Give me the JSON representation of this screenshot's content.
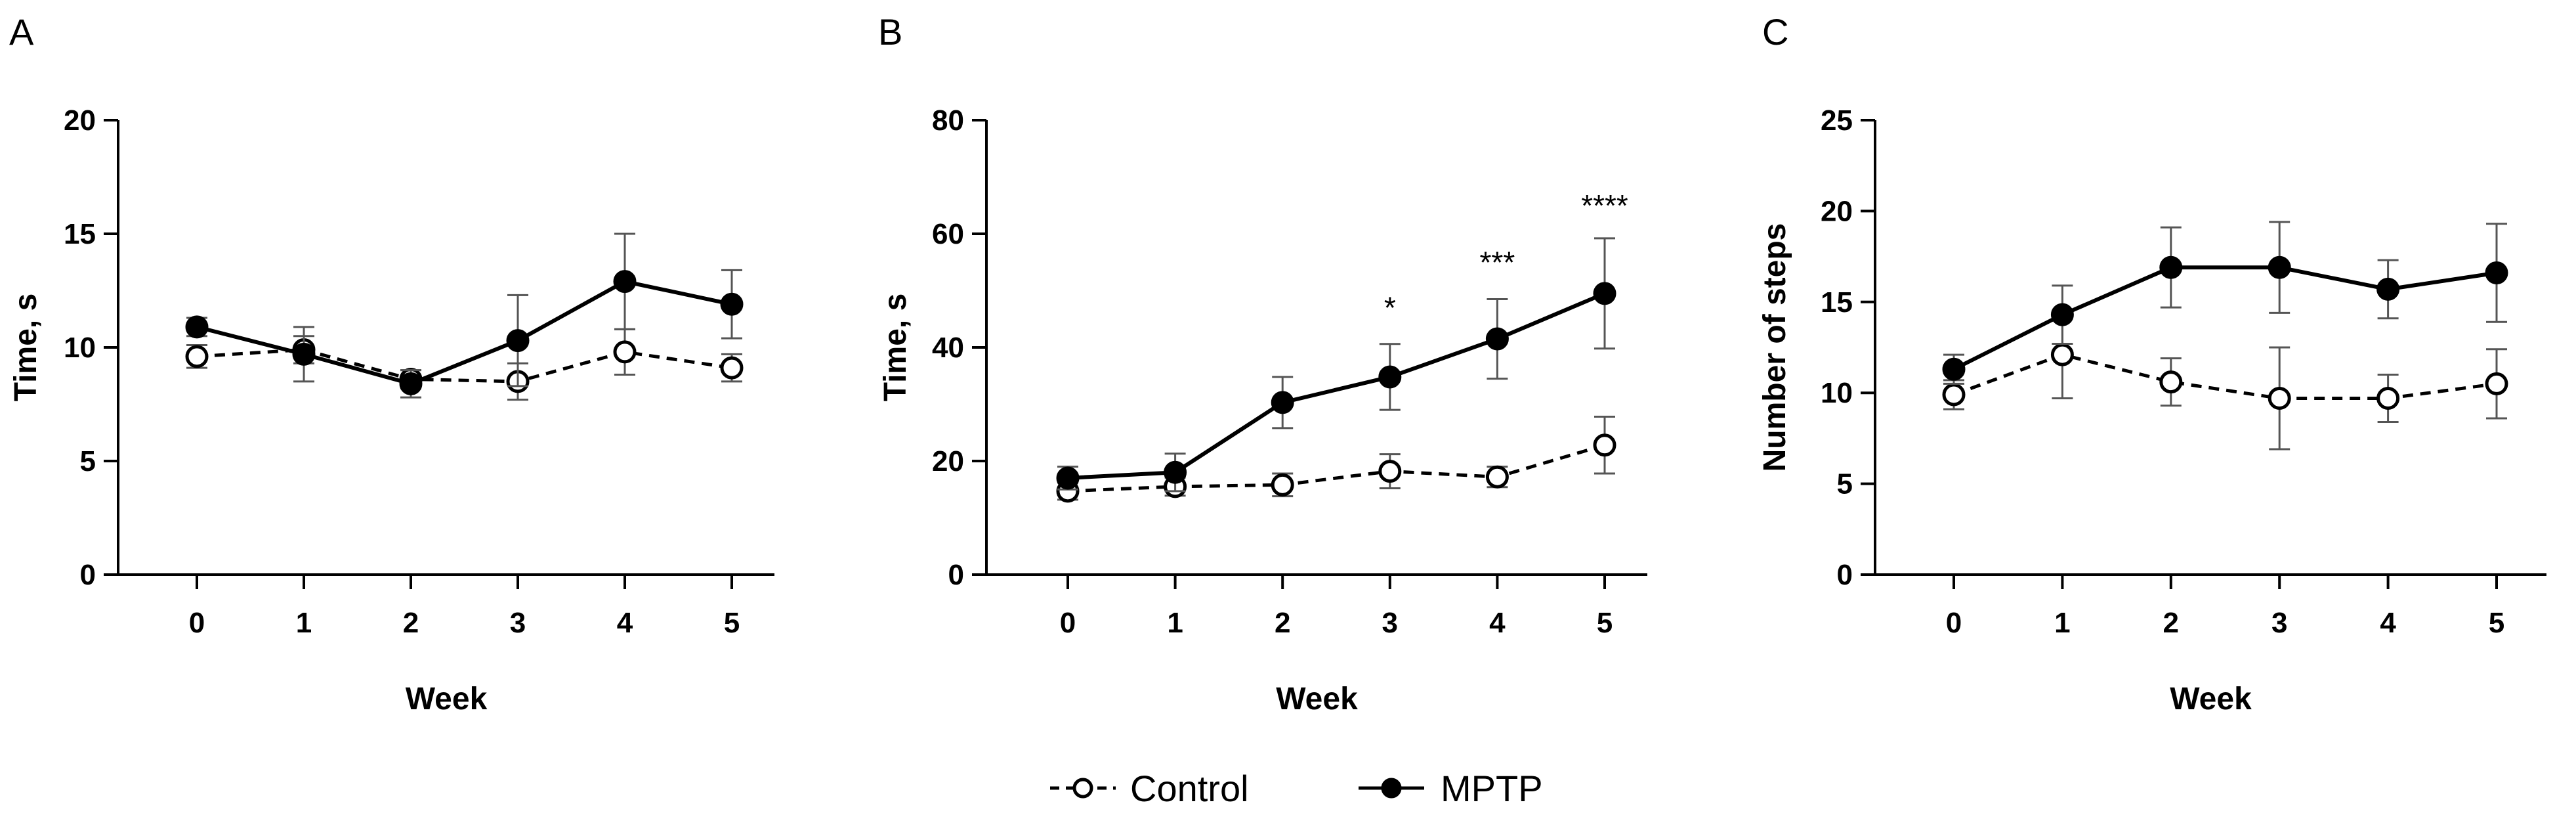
{
  "colors": {
    "ink": "#000000",
    "background": "#ffffff"
  },
  "legend": {
    "control_label": "Control",
    "mptp_label": "MPTP"
  },
  "chart_data": [
    {
      "panel": "A",
      "type": "line",
      "xlabel": "Week",
      "ylabel": "Time, s",
      "categories": [
        "0",
        "1",
        "2",
        "3",
        "4",
        "5"
      ],
      "x": [
        0,
        1,
        2,
        3,
        4,
        5
      ],
      "ylim": [
        0,
        20
      ],
      "yticks": [
        0,
        5,
        10,
        15,
        20
      ],
      "series": [
        {
          "name": "Control",
          "style": "dashed-open-circle",
          "values": [
            9.6,
            9.9,
            8.6,
            8.5,
            9.8,
            9.1
          ],
          "errors": [
            0.5,
            0.6,
            0.4,
            0.8,
            1.0,
            0.6
          ]
        },
        {
          "name": "MPTP",
          "style": "solid-filled-circle",
          "values": [
            10.9,
            9.7,
            8.4,
            10.3,
            12.9,
            11.9
          ],
          "errors": [
            0.4,
            1.2,
            0.6,
            2.0,
            2.1,
            1.5
          ]
        }
      ],
      "annotations": []
    },
    {
      "panel": "B",
      "type": "line",
      "xlabel": "Week",
      "ylabel": "Time, s",
      "categories": [
        "0",
        "1",
        "2",
        "3",
        "4",
        "5"
      ],
      "x": [
        0,
        1,
        2,
        3,
        4,
        5
      ],
      "ylim": [
        0,
        80
      ],
      "yticks": [
        0,
        20,
        40,
        60,
        80
      ],
      "series": [
        {
          "name": "Control",
          "style": "dashed-open-circle",
          "values": [
            14.7,
            15.5,
            15.8,
            18.2,
            17.2,
            22.8
          ],
          "errors": [
            1.5,
            1.6,
            2.0,
            3.0,
            1.8,
            5.0
          ]
        },
        {
          "name": "MPTP",
          "style": "solid-filled-circle",
          "values": [
            17.0,
            18.0,
            30.3,
            34.8,
            41.5,
            49.5
          ],
          "errors": [
            2.0,
            3.3,
            4.5,
            5.8,
            7.0,
            9.7
          ]
        }
      ],
      "annotations": [
        {
          "x": 3,
          "y": 47,
          "text": "*"
        },
        {
          "x": 4,
          "y": 55,
          "text": "***"
        },
        {
          "x": 5,
          "y": 65,
          "text": "****"
        }
      ]
    },
    {
      "panel": "C",
      "type": "line",
      "xlabel": "Week",
      "ylabel": "Number of steps",
      "categories": [
        "0",
        "1",
        "2",
        "3",
        "4",
        "5"
      ],
      "x": [
        0,
        1,
        2,
        3,
        4,
        5
      ],
      "ylim": [
        0,
        25
      ],
      "yticks": [
        0,
        5,
        10,
        15,
        20,
        25
      ],
      "series": [
        {
          "name": "Control",
          "style": "dashed-open-circle",
          "values": [
            9.9,
            12.1,
            10.6,
            9.7,
            9.7,
            10.5
          ],
          "errors": [
            0.8,
            2.4,
            1.3,
            2.8,
            1.3,
            1.9
          ]
        },
        {
          "name": "MPTP",
          "style": "solid-filled-circle",
          "values": [
            11.3,
            14.3,
            16.9,
            16.9,
            15.7,
            16.6
          ],
          "errors": [
            0.8,
            1.6,
            2.2,
            2.5,
            1.6,
            2.7
          ]
        }
      ],
      "annotations": []
    }
  ]
}
